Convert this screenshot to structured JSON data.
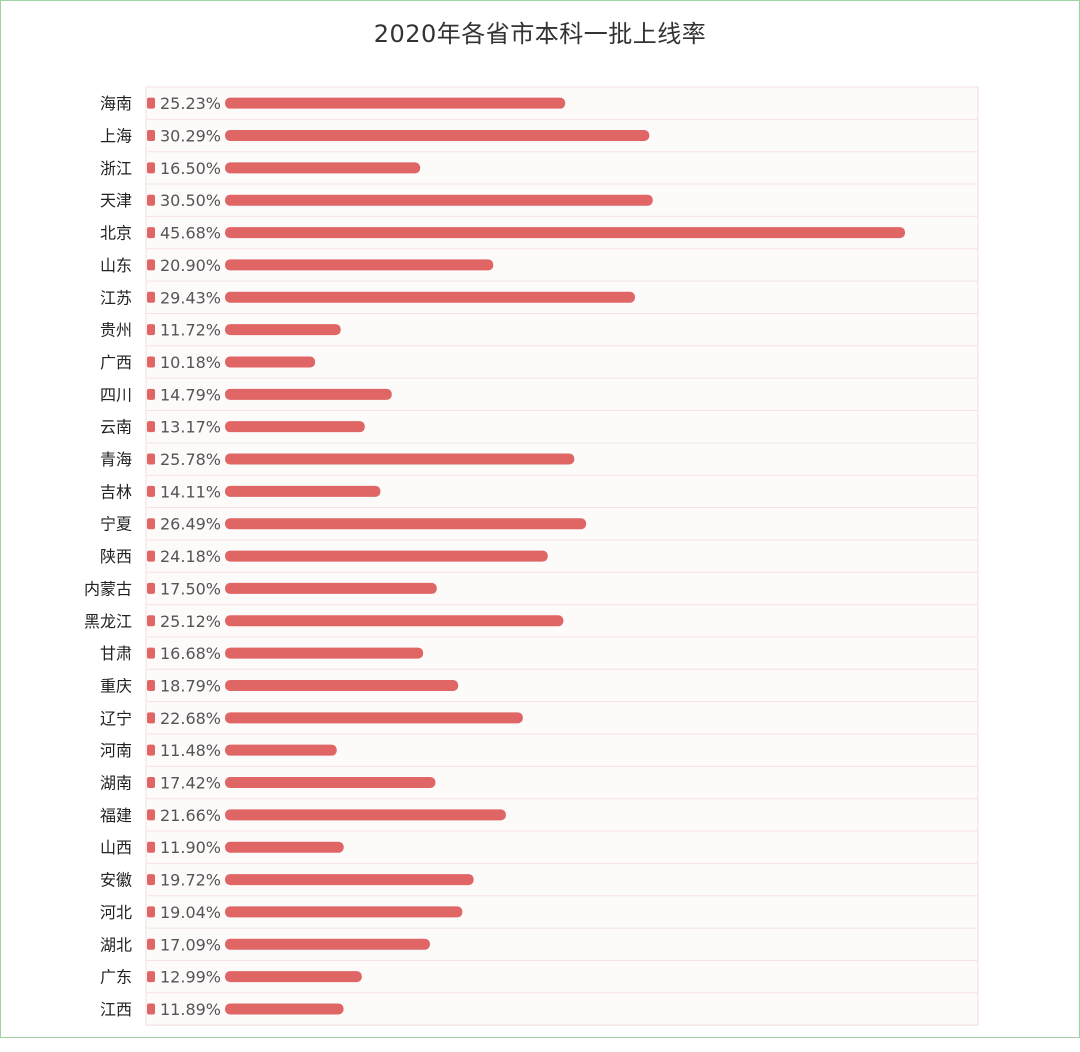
{
  "chart_data": {
    "type": "bar",
    "orientation": "horizontal",
    "title": "2020年各省市本科一批上线率",
    "xlabel": "",
    "ylabel": "",
    "bar_color": "#e06666",
    "grid": true,
    "legend": "none",
    "xlim": [
      0,
      48
    ],
    "categories": [
      "海南",
      "上海",
      "浙江",
      "天津",
      "北京",
      "山东",
      "江苏",
      "贵州",
      "广西",
      "四川",
      "云南",
      "青海",
      "吉林",
      "宁夏",
      "陕西",
      "内蒙古",
      "黑龙江",
      "甘肃",
      "重庆",
      "辽宁",
      "河南",
      "湖南",
      "福建",
      "山西",
      "安徽",
      "河北",
      "湖北",
      "广东",
      "江西"
    ],
    "values": [
      25.23,
      30.29,
      16.5,
      30.5,
      45.68,
      20.9,
      29.43,
      11.72,
      10.18,
      14.79,
      13.17,
      25.78,
      14.11,
      26.49,
      24.18,
      17.5,
      25.12,
      16.68,
      18.79,
      22.68,
      11.48,
      17.42,
      21.66,
      11.9,
      19.72,
      19.04,
      17.09,
      12.99,
      11.89
    ],
    "value_labels": [
      "25.23%",
      "30.29%",
      "16.50%",
      "30.50%",
      "45.68%",
      "20.90%",
      "29.43%",
      "11.72%",
      "10.18%",
      "14.79%",
      "13.17%",
      "25.78%",
      "14.11%",
      "26.49%",
      "24.18%",
      "17.50%",
      "25.12%",
      "16.68%",
      "18.79%",
      "22.68%",
      "11.48%",
      "17.42%",
      "21.66%",
      "11.90%",
      "19.72%",
      "19.04%",
      "17.09%",
      "12.99%",
      "11.89%"
    ]
  }
}
